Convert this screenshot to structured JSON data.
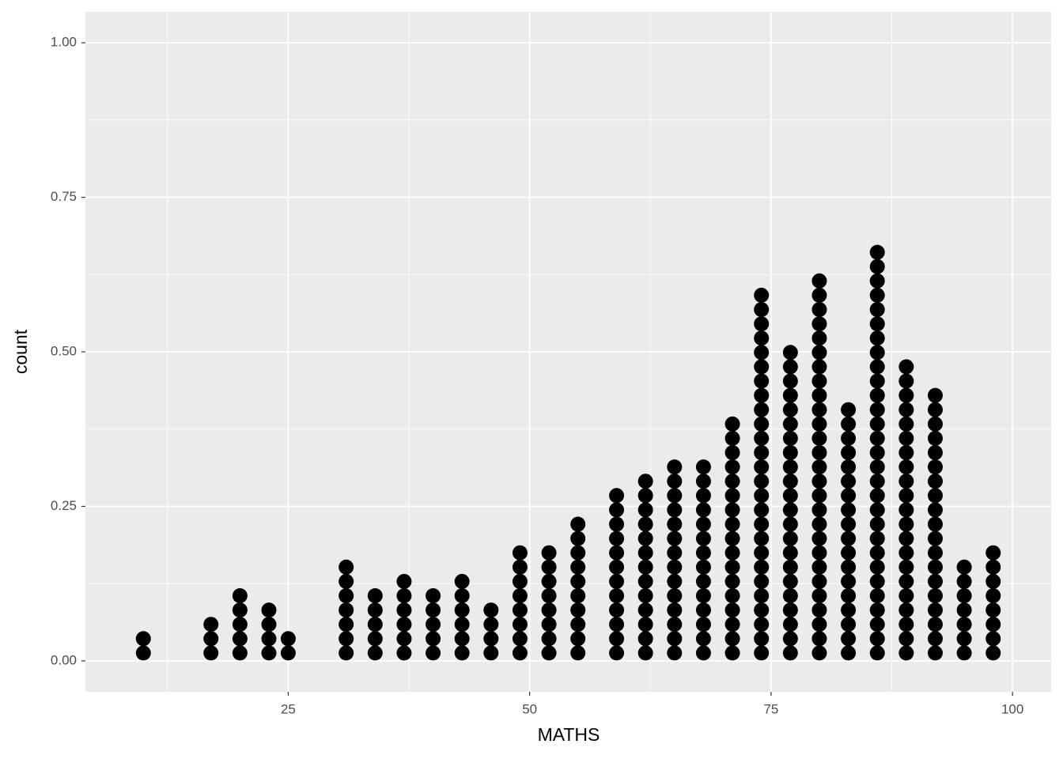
{
  "chart_data": {
    "type": "dotplot",
    "x_label": "MATHS",
    "y_label": "count",
    "x": [
      10,
      17,
      20,
      23,
      25,
      31,
      34,
      37,
      40,
      43,
      46,
      49,
      52,
      55,
      59,
      62,
      65,
      68,
      71,
      74,
      77,
      80,
      83,
      86,
      89,
      92,
      95,
      98
    ],
    "counts": [
      2,
      3,
      5,
      4,
      2,
      7,
      5,
      6,
      5,
      6,
      4,
      8,
      8,
      10,
      12,
      13,
      14,
      14,
      17,
      26,
      22,
      27,
      18,
      29,
      21,
      19,
      7,
      8
    ],
    "color": "#000000",
    "xlim": [
      4,
      104
    ],
    "xticks": [
      25,
      50,
      75,
      100
    ],
    "ylim": [
      -0.05,
      1.05
    ],
    "yticks": [
      {
        "value": 0,
        "label": "0.00"
      },
      {
        "value": 0.25,
        "label": "0.25"
      },
      {
        "value": 0.5,
        "label": "0.50"
      },
      {
        "value": 0.75,
        "label": "0.75"
      },
      {
        "value": 1,
        "label": "1.00"
      }
    ],
    "grid": true
  }
}
